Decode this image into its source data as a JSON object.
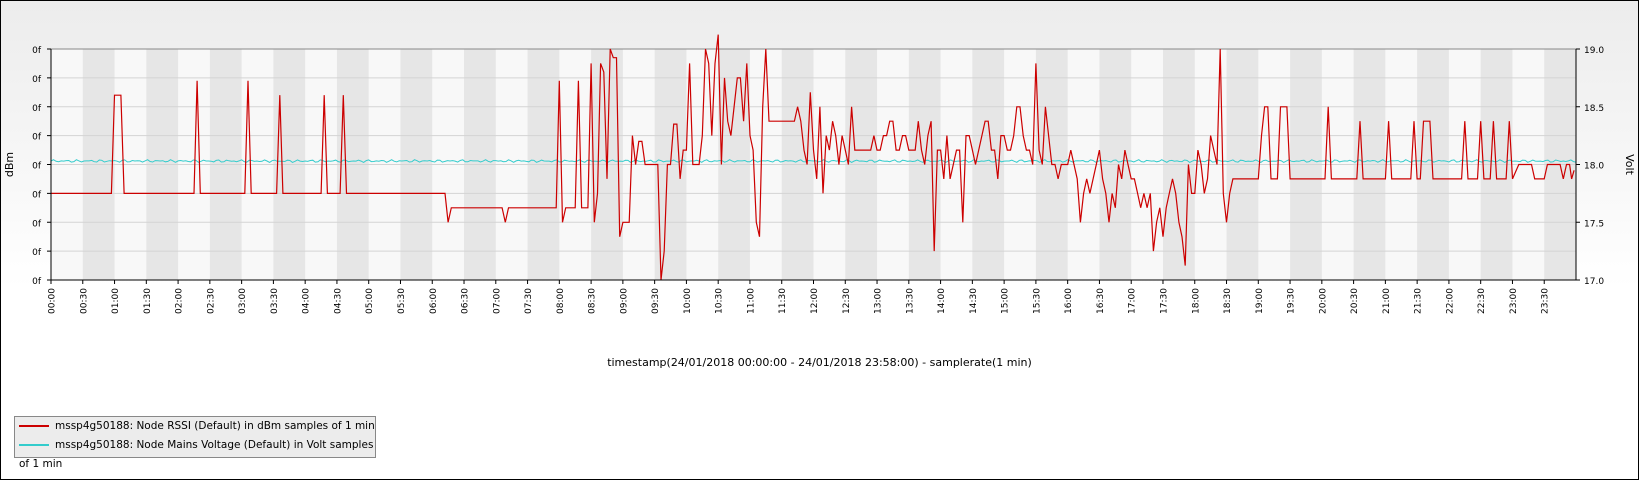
{
  "chart_data": {
    "type": "line",
    "xlabel": "timestamp(24/01/2018 00:00:00 - 24/01/2018 23:58:00) - samplerate(1 min)",
    "ylabel_left": "dBm",
    "ylabel_right": "Volt",
    "left_ticks": [
      "0f",
      "0f",
      "0f",
      "0f",
      "0f",
      "0f",
      "0f",
      "0f",
      "0f"
    ],
    "right_ticks": [
      "17.0",
      "17.5",
      "18.0",
      "18.5",
      "19.0"
    ],
    "ylim_right": [
      17.0,
      19.0
    ],
    "x_ticks": [
      "00:00",
      "00:30",
      "01:00",
      "01:30",
      "02:00",
      "02:30",
      "03:00",
      "03:30",
      "04:00",
      "04:30",
      "05:00",
      "05:30",
      "06:00",
      "06:30",
      "07:00",
      "07:30",
      "08:00",
      "08:30",
      "09:00",
      "09:30",
      "10:00",
      "10:30",
      "11:00",
      "11:30",
      "12:00",
      "12:30",
      "13:00",
      "13:30",
      "14:00",
      "14:30",
      "15:00",
      "15:30",
      "16:00",
      "16:30",
      "17:00",
      "17:30",
      "18:00",
      "18:30",
      "19:00",
      "19:30",
      "20:00",
      "20:30",
      "21:00",
      "21:30",
      "22:00",
      "22:30",
      "23:00",
      "23:30"
    ],
    "series": [
      {
        "name": "mssp4g50188: Node RSSI (Default) in dBm samples of 1 min",
        "color": "#cc0000",
        "axis": "left",
        "note": "RSSI values on a 0-8 band scale (tick labels printed as 0f); hours from 00:00",
        "points": [
          [
            0,
            3
          ],
          [
            0.95,
            3
          ],
          [
            1.0,
            6.4
          ],
          [
            1.1,
            6.4
          ],
          [
            1.15,
            3
          ],
          [
            2.25,
            3
          ],
          [
            2.3,
            6.9
          ],
          [
            2.35,
            3
          ],
          [
            3.05,
            3
          ],
          [
            3.1,
            6.9
          ],
          [
            3.15,
            3
          ],
          [
            3.55,
            3
          ],
          [
            3.6,
            6.4
          ],
          [
            3.65,
            3
          ],
          [
            4.25,
            3
          ],
          [
            4.3,
            6.4
          ],
          [
            4.35,
            3
          ],
          [
            4.55,
            3
          ],
          [
            4.6,
            6.4
          ],
          [
            4.65,
            3
          ],
          [
            6.2,
            3
          ],
          [
            6.25,
            2.0
          ],
          [
            6.3,
            2.5
          ],
          [
            7.1,
            2.5
          ],
          [
            7.15,
            2.0
          ],
          [
            7.2,
            2.5
          ],
          [
            7.95,
            2.5
          ],
          [
            8.0,
            6.9
          ],
          [
            8.05,
            2.0
          ],
          [
            8.1,
            2.5
          ],
          [
            8.25,
            2.5
          ],
          [
            8.3,
            6.9
          ],
          [
            8.35,
            2.5
          ],
          [
            8.45,
            2.5
          ],
          [
            8.5,
            7.5
          ],
          [
            8.55,
            2.0
          ],
          [
            8.6,
            3.0
          ],
          [
            8.65,
            7.5
          ],
          [
            8.7,
            7.2
          ],
          [
            8.75,
            3.5
          ],
          [
            8.8,
            8.0
          ],
          [
            8.85,
            7.7
          ],
          [
            8.9,
            7.7
          ],
          [
            8.95,
            1.5
          ],
          [
            9.0,
            2.0
          ],
          [
            9.1,
            2.0
          ],
          [
            9.15,
            5.0
          ],
          [
            9.2,
            4.0
          ],
          [
            9.25,
            4.8
          ],
          [
            9.3,
            4.8
          ],
          [
            9.35,
            4.0
          ],
          [
            9.55,
            4.0
          ],
          [
            9.6,
            0
          ],
          [
            9.65,
            1.0
          ],
          [
            9.7,
            4.0
          ],
          [
            9.75,
            4.0
          ],
          [
            9.8,
            5.4
          ],
          [
            9.85,
            5.4
          ],
          [
            9.9,
            3.5
          ],
          [
            9.95,
            4.5
          ],
          [
            10.0,
            4.5
          ],
          [
            10.05,
            7.5
          ],
          [
            10.1,
            4.0
          ],
          [
            10.2,
            4.0
          ],
          [
            10.25,
            5.0
          ],
          [
            10.3,
            8.0
          ],
          [
            10.35,
            7.5
          ],
          [
            10.4,
            5.0
          ],
          [
            10.45,
            7.5
          ],
          [
            10.5,
            8.5
          ],
          [
            10.55,
            4.0
          ],
          [
            10.6,
            7.0
          ],
          [
            10.65,
            5.5
          ],
          [
            10.7,
            5.0
          ],
          [
            10.75,
            6.0
          ],
          [
            10.8,
            7.0
          ],
          [
            10.85,
            7.0
          ],
          [
            10.9,
            5.5
          ],
          [
            10.95,
            7.5
          ],
          [
            11.0,
            5.0
          ],
          [
            11.05,
            4.5
          ],
          [
            11.1,
            2.0
          ],
          [
            11.15,
            1.5
          ],
          [
            11.2,
            6.0
          ],
          [
            11.25,
            8.0
          ],
          [
            11.3,
            5.5
          ],
          [
            11.35,
            5.5
          ],
          [
            11.5,
            5.5
          ],
          [
            11.7,
            5.5
          ],
          [
            11.75,
            6.0
          ],
          [
            11.8,
            5.5
          ],
          [
            11.85,
            4.5
          ],
          [
            11.9,
            4.0
          ],
          [
            11.95,
            6.5
          ],
          [
            12.0,
            4.5
          ],
          [
            12.05,
            3.5
          ],
          [
            12.1,
            6.0
          ],
          [
            12.15,
            3.0
          ],
          [
            12.2,
            5.0
          ],
          [
            12.25,
            4.5
          ],
          [
            12.3,
            5.5
          ],
          [
            12.35,
            5.0
          ],
          [
            12.4,
            4.0
          ],
          [
            12.45,
            5.0
          ],
          [
            12.5,
            4.5
          ],
          [
            12.55,
            4.0
          ],
          [
            12.6,
            6.0
          ],
          [
            12.65,
            4.5
          ],
          [
            12.7,
            4.5
          ],
          [
            12.75,
            4.5
          ],
          [
            12.8,
            4.5
          ],
          [
            12.85,
            4.5
          ],
          [
            12.9,
            4.5
          ],
          [
            12.95,
            5.0
          ],
          [
            13.0,
            4.5
          ],
          [
            13.05,
            4.5
          ],
          [
            13.1,
            5.0
          ],
          [
            13.15,
            5.0
          ],
          [
            13.2,
            5.5
          ],
          [
            13.25,
            5.5
          ],
          [
            13.3,
            4.5
          ],
          [
            13.35,
            4.5
          ],
          [
            13.4,
            5.0
          ],
          [
            13.45,
            5.0
          ],
          [
            13.5,
            4.5
          ],
          [
            13.55,
            4.5
          ],
          [
            13.6,
            4.5
          ],
          [
            13.65,
            5.5
          ],
          [
            13.7,
            4.5
          ],
          [
            13.75,
            4.0
          ],
          [
            13.8,
            5.0
          ],
          [
            13.85,
            5.5
          ],
          [
            13.9,
            1.0
          ],
          [
            13.95,
            4.5
          ],
          [
            14.0,
            4.5
          ],
          [
            14.05,
            3.5
          ],
          [
            14.1,
            5.0
          ],
          [
            14.15,
            3.5
          ],
          [
            14.2,
            4.0
          ],
          [
            14.25,
            4.5
          ],
          [
            14.3,
            4.5
          ],
          [
            14.35,
            2.0
          ],
          [
            14.4,
            5.0
          ],
          [
            14.45,
            5.0
          ],
          [
            14.5,
            4.5
          ],
          [
            14.55,
            4.0
          ],
          [
            14.6,
            4.5
          ],
          [
            14.65,
            5.0
          ],
          [
            14.7,
            5.5
          ],
          [
            14.75,
            5.5
          ],
          [
            14.8,
            4.5
          ],
          [
            14.85,
            4.5
          ],
          [
            14.9,
            3.5
          ],
          [
            14.95,
            5.0
          ],
          [
            15.0,
            5.0
          ],
          [
            15.05,
            4.5
          ],
          [
            15.1,
            4.5
          ],
          [
            15.15,
            5.0
          ],
          [
            15.2,
            6.0
          ],
          [
            15.25,
            6.0
          ],
          [
            15.3,
            5.0
          ],
          [
            15.35,
            4.5
          ],
          [
            15.4,
            4.5
          ],
          [
            15.45,
            4.0
          ],
          [
            15.5,
            7.5
          ],
          [
            15.55,
            4.5
          ],
          [
            15.6,
            4.0
          ],
          [
            15.65,
            6.0
          ],
          [
            15.7,
            5.0
          ],
          [
            15.75,
            4.0
          ],
          [
            15.8,
            4.0
          ],
          [
            15.85,
            3.5
          ],
          [
            15.9,
            4.0
          ],
          [
            15.95,
            4.0
          ],
          [
            16.0,
            4.0
          ],
          [
            16.05,
            4.5
          ],
          [
            16.1,
            4.0
          ],
          [
            16.15,
            3.5
          ],
          [
            16.2,
            2.0
          ],
          [
            16.25,
            3.0
          ],
          [
            16.3,
            3.5
          ],
          [
            16.35,
            3.0
          ],
          [
            16.4,
            3.5
          ],
          [
            16.45,
            4.0
          ],
          [
            16.5,
            4.5
          ],
          [
            16.55,
            3.5
          ],
          [
            16.6,
            3.0
          ],
          [
            16.65,
            2.0
          ],
          [
            16.7,
            3.0
          ],
          [
            16.75,
            2.5
          ],
          [
            16.8,
            4.0
          ],
          [
            16.85,
            3.5
          ],
          [
            16.9,
            4.5
          ],
          [
            16.95,
            4.0
          ],
          [
            17.0,
            3.5
          ],
          [
            17.05,
            3.5
          ],
          [
            17.1,
            3.0
          ],
          [
            17.15,
            2.5
          ],
          [
            17.2,
            3.0
          ],
          [
            17.25,
            2.5
          ],
          [
            17.3,
            3.0
          ],
          [
            17.35,
            1.0
          ],
          [
            17.4,
            2.0
          ],
          [
            17.45,
            2.5
          ],
          [
            17.5,
            1.5
          ],
          [
            17.55,
            2.5
          ],
          [
            17.6,
            3.0
          ],
          [
            17.65,
            3.5
          ],
          [
            17.7,
            3.0
          ],
          [
            17.75,
            2.0
          ],
          [
            17.8,
            1.5
          ],
          [
            17.85,
            0.5
          ],
          [
            17.9,
            4.0
          ],
          [
            17.95,
            3.0
          ],
          [
            18.0,
            3.0
          ],
          [
            18.05,
            4.5
          ],
          [
            18.1,
            4.0
          ],
          [
            18.15,
            3.0
          ],
          [
            18.2,
            3.5
          ],
          [
            18.25,
            5.0
          ],
          [
            18.3,
            4.5
          ],
          [
            18.35,
            4.0
          ],
          [
            18.4,
            8.0
          ],
          [
            18.45,
            3.0
          ],
          [
            18.5,
            2.0
          ],
          [
            18.55,
            3.0
          ],
          [
            18.6,
            3.5
          ],
          [
            18.65,
            3.5
          ],
          [
            19.0,
            3.5
          ],
          [
            19.05,
            5.0
          ],
          [
            19.1,
            6.0
          ],
          [
            19.15,
            6.0
          ],
          [
            19.2,
            3.5
          ],
          [
            19.3,
            3.5
          ],
          [
            19.35,
            6.0
          ],
          [
            19.45,
            6.0
          ],
          [
            19.5,
            3.5
          ],
          [
            20.05,
            3.5
          ],
          [
            20.1,
            6.0
          ],
          [
            20.15,
            3.5
          ],
          [
            20.55,
            3.5
          ],
          [
            20.6,
            5.5
          ],
          [
            20.65,
            3.5
          ],
          [
            21.0,
            3.5
          ],
          [
            21.05,
            5.5
          ],
          [
            21.1,
            3.5
          ],
          [
            21.4,
            3.5
          ],
          [
            21.45,
            5.5
          ],
          [
            21.5,
            3.5
          ],
          [
            21.55,
            3.5
          ],
          [
            21.6,
            5.5
          ],
          [
            21.7,
            5.5
          ],
          [
            21.75,
            3.5
          ],
          [
            22.2,
            3.5
          ],
          [
            22.25,
            5.5
          ],
          [
            22.3,
            3.5
          ],
          [
            22.45,
            3.5
          ],
          [
            22.5,
            5.5
          ],
          [
            22.55,
            3.5
          ],
          [
            22.65,
            3.5
          ],
          [
            22.7,
            5.5
          ],
          [
            22.75,
            3.5
          ],
          [
            22.9,
            3.5
          ],
          [
            22.95,
            5.5
          ],
          [
            23.0,
            3.5
          ],
          [
            23.1,
            4.0
          ],
          [
            23.3,
            4.0
          ],
          [
            23.35,
            3.5
          ],
          [
            23.5,
            3.5
          ],
          [
            23.55,
            4.0
          ],
          [
            23.75,
            4.0
          ],
          [
            23.8,
            3.5
          ],
          [
            23.85,
            4.0
          ],
          [
            23.9,
            4.0
          ],
          [
            23.93,
            3.5
          ],
          [
            23.97,
            3.8
          ]
        ]
      },
      {
        "name": "mssp4g50188: Node Mains Voltage (Default) in Volt samples of 1 min",
        "color": "#33cccc",
        "axis": "right",
        "x": [
          0,
          24
        ],
        "mean": 18.03,
        "note": "nearly flat voltage line with minor jitter around 18.03 V"
      }
    ]
  }
}
